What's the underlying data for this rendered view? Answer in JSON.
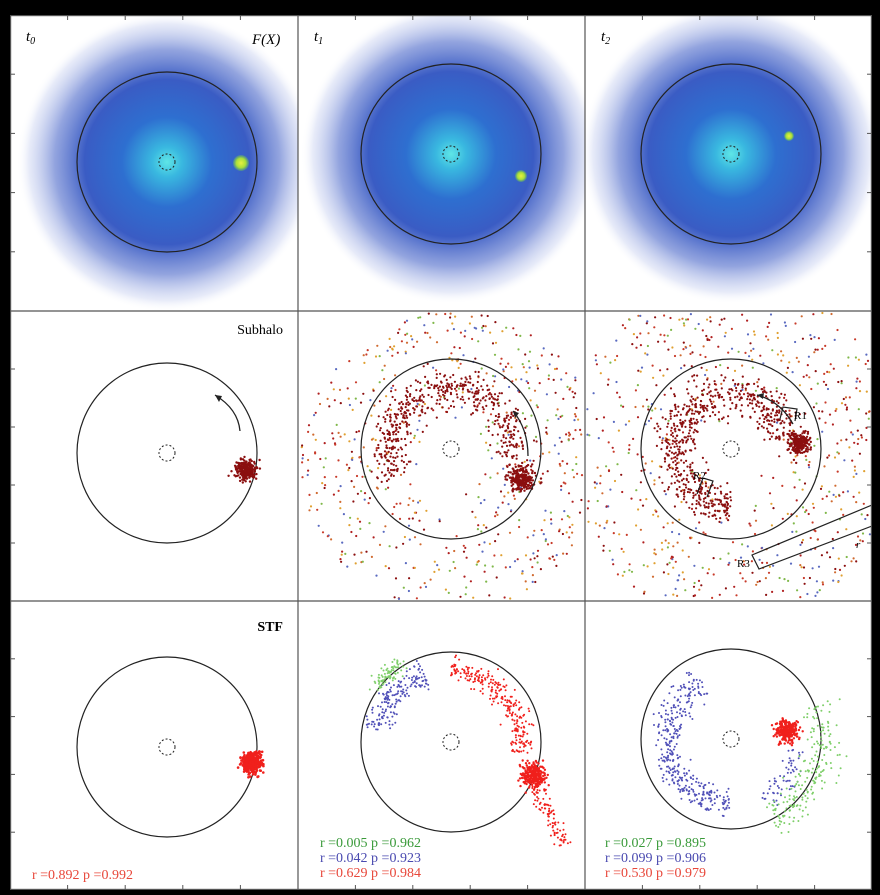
{
  "columns": [
    {
      "time_label_base": "t",
      "time_label_sub": "0"
    },
    {
      "time_label_base": "t",
      "time_label_sub": "1"
    },
    {
      "time_label_base": "t",
      "time_label_sub": "2"
    }
  ],
  "top_row_label": "F(X)",
  "row_labels": {
    "subhalo": "Subhalo",
    "stf": "STF"
  },
  "region_labels": {
    "r1": "R1",
    "r2": "R2",
    "r3": "R3",
    "r": "r"
  },
  "stats": {
    "col0": [
      {
        "text": "r =0.892 p =0.992",
        "color": "#e8473a"
      }
    ],
    "col1": [
      {
        "text": "r =0.005 p =0.962",
        "color": "#3a9a3a"
      },
      {
        "text": "r =0.042 p =0.923",
        "color": "#4a4ab0"
      },
      {
        "text": "r =0.629 p =0.984",
        "color": "#e8473a"
      }
    ],
    "col2": [
      {
        "text": "r =0.027 p =0.895",
        "color": "#3a9a3a"
      },
      {
        "text": "r =0.099 p =0.906",
        "color": "#4a4ab0"
      },
      {
        "text": "r =0.530 p =0.979",
        "color": "#e8473a"
      }
    ]
  },
  "colors": {
    "halo_outer": "#3a63c8",
    "halo_core": "#4fd6e0",
    "subhalo_green": "#b8e43a",
    "subhalo_dark_red": "#8b0f0f",
    "stf_red": "#f0201c",
    "stf_blue": "#5050b8",
    "stf_green": "#7fcf6a"
  }
}
